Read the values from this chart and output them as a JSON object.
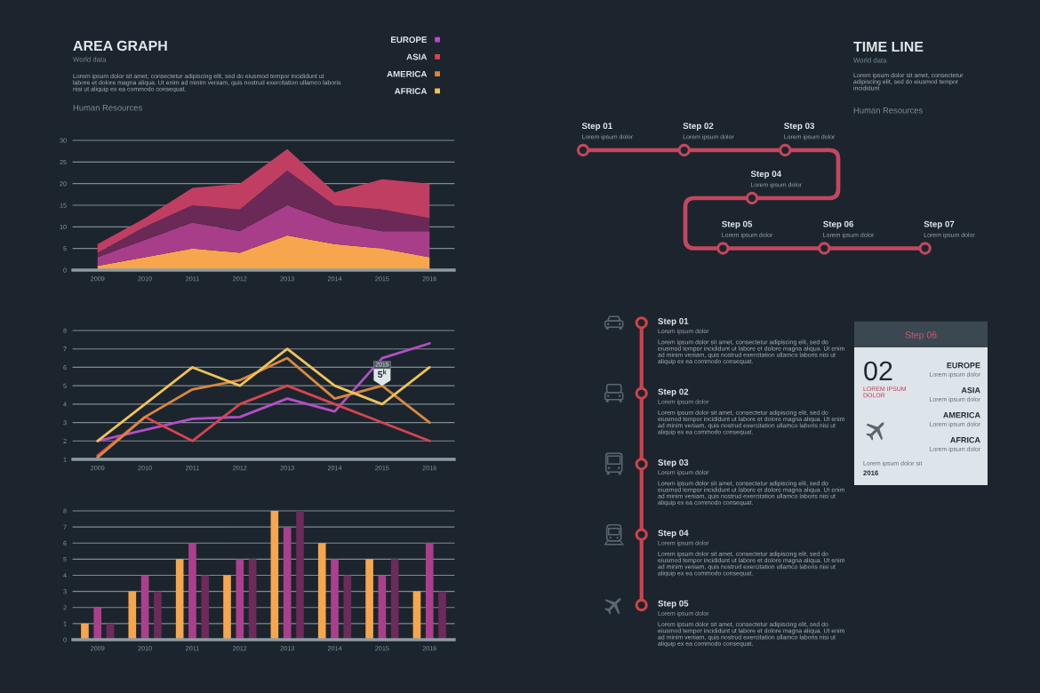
{
  "chart_data": [
    {
      "type": "area",
      "stacked": true,
      "title": "AREA GRAPH",
      "subtitle": "World data",
      "annotations": [
        "Lorem ipsum dolor sit amet, consectetur adipiscing elit, sed do eiusmod tempor incididunt ut\nlabore et dolore magna aliqua. Ut enim ad minim veniam, quis nostrud exercitation ullamco laboris\nnisi ut aliquip ex ea commodo consequat.",
        "Human Resources"
      ],
      "categories": [
        "2009",
        "2010",
        "2011",
        "2012",
        "2013",
        "2014",
        "2015",
        "2016"
      ],
      "series": [
        {
          "color": "#f8a64e",
          "values": [
            1,
            3,
            5,
            4,
            8,
            6,
            5,
            3
          ]
        },
        {
          "color": "#a83e8a",
          "values": [
            2,
            4,
            6,
            5,
            7,
            5,
            4,
            6
          ]
        },
        {
          "color": "#6a2956",
          "values": [
            1,
            3,
            4,
            5,
            8,
            4,
            5,
            3
          ]
        },
        {
          "color": "#c03e62",
          "values": [
            2,
            2,
            4,
            6,
            5,
            3,
            7,
            8
          ]
        }
      ],
      "ylim": [
        0,
        30
      ],
      "yticks": [
        0,
        5,
        10,
        15,
        20,
        25,
        30
      ],
      "grid": "y"
    },
    {
      "type": "line",
      "categories": [
        "2009",
        "2010",
        "2011",
        "2012",
        "2013",
        "2014",
        "2015",
        "2016"
      ],
      "series": [
        {
          "name": "EUROPE",
          "color": "#b34fc6",
          "values": [
            2,
            2.6,
            3.2,
            3.3,
            4.3,
            3.6,
            6.5,
            7.3
          ]
        },
        {
          "name": "ASIA",
          "color": "#d6454f",
          "values": [
            1.2,
            3.3,
            2,
            4,
            5,
            4,
            3,
            2
          ]
        },
        {
          "name": "AMERICA",
          "color": "#d8883f",
          "values": [
            1.1,
            3.3,
            4.8,
            5.3,
            6.5,
            4.3,
            5,
            3
          ]
        },
        {
          "name": "AFRICA",
          "color": "#efc35a",
          "values": [
            2,
            4,
            6,
            5,
            7,
            5,
            4,
            6
          ]
        }
      ],
      "ylim": [
        1,
        8
      ],
      "yticks": [
        1,
        2,
        3,
        4,
        5,
        6,
        7,
        8
      ],
      "grid": "y",
      "legend": "top right",
      "annotations": [
        "2015",
        {
          "text": "5$^{k}$",
          "x": "2015",
          "y": 5
        }
      ]
    },
    {
      "type": "bar",
      "categories": [
        "2009",
        "2010",
        "2011",
        "2012",
        "2013",
        "2014",
        "2015",
        "2016"
      ],
      "series": [
        {
          "color": "#f6a64f",
          "values": [
            1,
            3,
            5,
            4,
            8,
            6,
            5,
            3
          ]
        },
        {
          "color": "#ac3f8d",
          "values": [
            2,
            4,
            6,
            5,
            7,
            5,
            4,
            6
          ]
        },
        {
          "color": "#6d2a5a",
          "values": [
            1,
            3,
            4,
            5,
            8,
            4,
            5,
            3
          ]
        }
      ],
      "ylim": [
        0,
        8
      ],
      "yticks": [
        0,
        1,
        2,
        3,
        4,
        5,
        6,
        7,
        8
      ],
      "grid": "y"
    },
    {
      "type": "other",
      "title": "TIME LINE",
      "subtitle": "World data",
      "categories": [
        "Step 01",
        "Step 02",
        "Step 03",
        "Step 04",
        "Step 05",
        "Step 06",
        "Step 07"
      ],
      "annotations": [
        "Lorem ipsum dolor sit amet, consectetur\nadipiscing elit, sed do eiusmod tempor\nincididunt",
        "Human Resources",
        "Lorem ipsum dolor",
        "Lorem ipsum dolor",
        "Lorem ipsum dolor",
        "Lorem ipsum dolor",
        "Lorem ipsum dolor",
        "Lorem ipsum dolor",
        "Lorem ipsum dolor"
      ]
    },
    {
      "type": "other",
      "categories": [
        "Step 01",
        "Step 02",
        "Step 03",
        "Step 04",
        "Step 05"
      ],
      "annotations": [
        "Lorem ipsum dolor",
        "Lorem ipsum dolor sit amet, consectetur adipiscing elit, sed do\neiusmod tempor incididunt ut labore et dolore magna aliqua. Ut enim\nad minim veniam, quis nostrud exercitation ullamco laboris nisi ut\naliquip ex ea commodo consequat.",
        "Lorem ipsum dolor",
        "Lorem ipsum dolor sit amet, consectetur adipiscing elit, sed do\neiusmod tempor incididunt ut labore et dolore magna aliqua. Ut enim\nad minim veniam, quis nostrud exercitation ullamco laboris nisi ut\naliquip ex ea commodo consequat.",
        "Lorem ipsum dolor",
        "Lorem ipsum dolor sit amet, consectetur adipiscing elit, sed do\neiusmod tempor incididunt ut labore et dolore magna aliqua. Ut enim\nad minim veniam, quis nostrud exercitation ullamco laboris nisi ut\naliquip ex ea commodo consequat.",
        "Lorem ipsum dolor",
        "Lorem ipsum dolor sit amet, consectetur adipiscing elit, sed do\neiusmod tempor incididunt ut labore et dolore magna aliqua. Ut enim\nad minim veniam, quis nostrud exercitation ullamco laboris nisi ut\naliquip ex ea commodo consequat.",
        "Lorem ipsum dolor",
        "Lorem ipsum dolor sit amet, consectetur adipiscing elit, sed do\neiusmod tempor incididunt ut labore et dolore magna aliqua. Ut enim\nad minim veniam, quis nostrud exercitation ullamco laboris nisi ut\naliquip ex ea commodo consequat."
      ]
    },
    {
      "type": "other",
      "title": "Step 06",
      "annotations": [
        "02",
        "LOREM IPSUM\nDOLOR",
        "EUROPE",
        "Lorem ipsum dolor",
        "ASIA",
        "Lorem ipsum dolor",
        "AMERICA",
        "Lorem ipsum dolor",
        "AFRICA",
        "Lorem ipsum dolor",
        "Lorem ipsum dolor sit",
        "2016"
      ]
    }
  ]
}
